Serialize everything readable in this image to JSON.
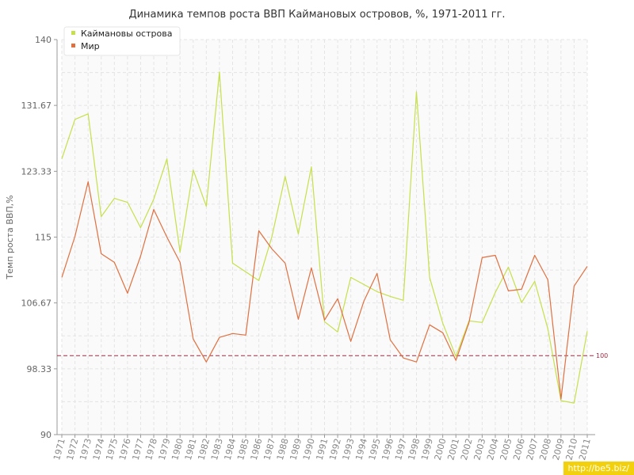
{
  "chart_data": {
    "type": "line",
    "title": "Динамика темпов роста ВВП Каймановых островов, %, 1971-2011 гг.",
    "ylabel": "Темп роста ВВП,%",
    "ylim": [
      90,
      140
    ],
    "yticks": [
      90,
      98.33,
      106.67,
      115,
      123.33,
      131.67,
      140
    ],
    "ytick_labels": [
      "90",
      "98.33",
      "106.67",
      "115",
      "123.33",
      "131.67",
      "140"
    ],
    "x": [
      "1971",
      "1972",
      "1973",
      "1974",
      "1975",
      "1976",
      "1977",
      "1978",
      "1979",
      "1980",
      "1981",
      "1982",
      "1983",
      "1984",
      "1985",
      "1986",
      "1987",
      "1988",
      "1989",
      "1990",
      "1991",
      "1992",
      "1993",
      "1994",
      "1995",
      "1996",
      "1997",
      "1998",
      "1999",
      "2000",
      "2001",
      "2002",
      "2003",
      "2004",
      "2005",
      "2006",
      "2007",
      "2008",
      "2009",
      "2010",
      "2011"
    ],
    "series": [
      {
        "name": "Каймановы острова",
        "color": "#c5e04a",
        "values": [
          124.9,
          129.9,
          130.6,
          117.6,
          119.9,
          119.4,
          116.2,
          119.8,
          124.9,
          113.1,
          123.5,
          118.9,
          135.9,
          111.7,
          110.6,
          109.5,
          115.1,
          122.7,
          115.4,
          123.9,
          104.3,
          103.0,
          109.9,
          109.0,
          108.1,
          107.5,
          107.0,
          133.4,
          109.9,
          104.1,
          99.9,
          104.4,
          104.2,
          108.0,
          111.2,
          106.7,
          109.4,
          103.4,
          94.3,
          94.0,
          103.1
        ]
      },
      {
        "name": "Мир",
        "color": "#e07040",
        "values": [
          109.9,
          115.1,
          122.0,
          112.9,
          111.8,
          107.9,
          112.6,
          118.5,
          115.0,
          111.8,
          102.1,
          99.2,
          102.3,
          102.8,
          102.6,
          115.8,
          113.5,
          111.7,
          104.6,
          111.1,
          104.5,
          107.2,
          101.8,
          106.9,
          110.4,
          102.0,
          99.7,
          99.2,
          103.9,
          102.9,
          99.4,
          104.2,
          112.4,
          112.7,
          108.2,
          108.4,
          112.7,
          109.6,
          94.5,
          108.8,
          111.3
        ]
      }
    ],
    "reference_line": {
      "value": 100,
      "label": "100",
      "color": "#9b2d45"
    },
    "grid": true,
    "legend": "top-left"
  },
  "watermark": "http://be5.biz/"
}
